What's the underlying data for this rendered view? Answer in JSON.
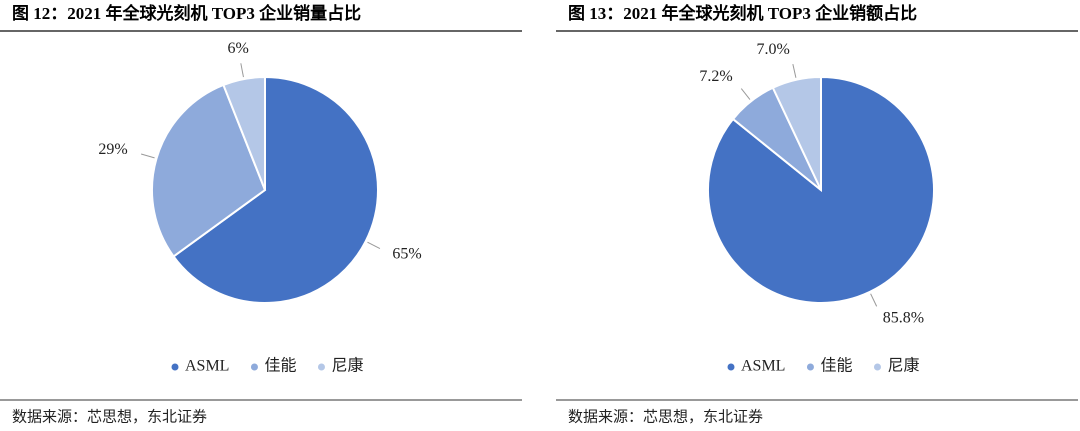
{
  "chart_data": [
    {
      "type": "pie",
      "title": "图 12：2021 年全球光刻机 TOP3 企业销量占比",
      "categories": [
        "ASML",
        "佳能",
        "尼康"
      ],
      "values": [
        65,
        29,
        6
      ],
      "value_labels": [
        "65%",
        "29%",
        "6%"
      ],
      "colors": [
        "#4472c4",
        "#8eaadb",
        "#b4c7e7"
      ],
      "legend": "bottom",
      "source": "数据来源：芯思想，东北证券"
    },
    {
      "type": "pie",
      "title": "图 13：2021 年全球光刻机 TOP3 企业销额占比",
      "categories": [
        "ASML",
        "佳能",
        "尼康"
      ],
      "values": [
        85.8,
        7.2,
        7.0
      ],
      "value_labels": [
        "85.8%",
        "7.2%",
        "7.0%"
      ],
      "colors": [
        "#4472c4",
        "#8eaadb",
        "#b4c7e7"
      ],
      "legend": "bottom",
      "source": "数据来源：芯思想，东北证券"
    }
  ]
}
